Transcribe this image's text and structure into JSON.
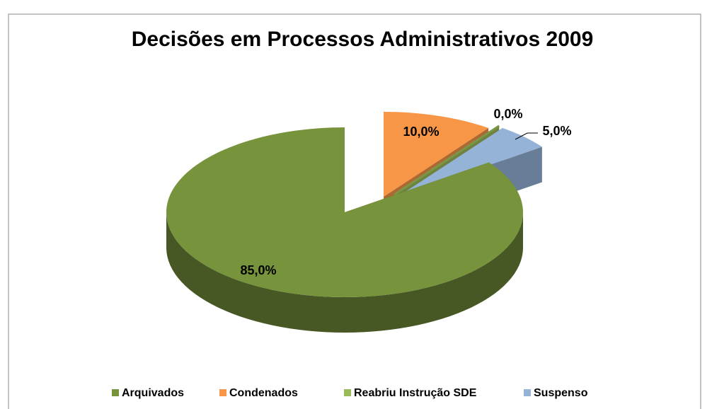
{
  "chart_data": {
    "type": "pie3d",
    "title": "Decisões em Processos Administrativos 2009",
    "categories": [
      "Arquivados",
      "Condenados",
      "Reabriu Instrução  SDE",
      "Suspenso"
    ],
    "values": [
      85,
      10,
      0,
      5
    ],
    "value_labels": [
      "85,0%",
      "10,0%",
      "0,0%",
      "5,0%"
    ],
    "colors": [
      "#77933c",
      "#f79646",
      "#9bbb59",
      "#95b3d7"
    ],
    "legend": "bottom"
  }
}
